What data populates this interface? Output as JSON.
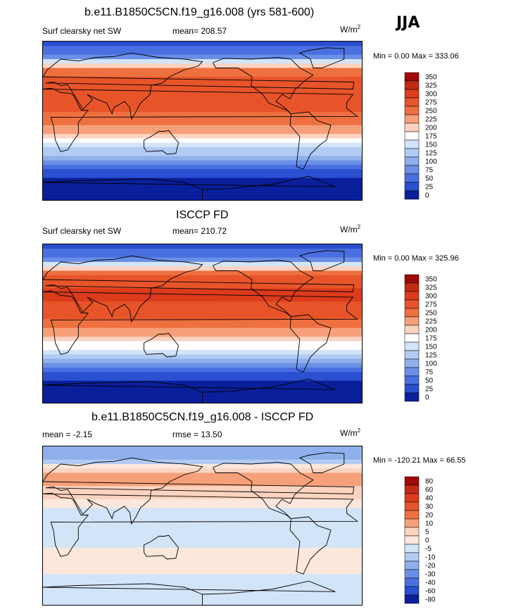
{
  "season": "JJA",
  "units_base": "W/m",
  "units_exp": "2",
  "panels": [
    {
      "title": "b.e11.B1850C5CN.f19_g16.008 (yrs 581-600)",
      "left_label": "Surf clearsky net SW",
      "center_label": "mean= 208.57",
      "stats": "Min =   0.00 Max = 333.06"
    },
    {
      "title": "ISCCP FD",
      "left_label": "Surf clearsky net SW",
      "center_label": "mean= 210.72",
      "stats": "Min =   0.00 Max = 325.96"
    },
    {
      "title": "b.e11.B1850C5CN.f19_g16.008 - ISCCP FD",
      "left_label": "mean =  -2.15",
      "center_label": "rmse =  13.50",
      "stats": "Min = -120.21 Max =  66.55"
    }
  ],
  "chart_data": [
    {
      "type": "heatmap",
      "title": "b.e11.B1850C5CN.f19_g16.008 (yrs 581-600)",
      "variable": "Surf clearsky net SW",
      "mean": 208.57,
      "min": 0.0,
      "max": 333.06,
      "colorbar_levels": [
        "350",
        "325",
        "300",
        "275",
        "250",
        "225",
        "200",
        "175",
        "150",
        "125",
        "100",
        "75",
        "50",
        "25",
        "0"
      ],
      "colorbar_colors": [
        "#a00a0a",
        "#c22a14",
        "#dc3b1c",
        "#e8542a",
        "#ee7040",
        "#f6a07a",
        "#fcd3c0",
        "#ffffff",
        "#d2e4f8",
        "#b2cbf2",
        "#8fb0ec",
        "#6a8fe6",
        "#4a6fe0",
        "#2a4fd0",
        "#0a1f9c"
      ],
      "lat_profile": [
        [
          90,
          40
        ],
        [
          75,
          60
        ],
        [
          60,
          250
        ],
        [
          45,
          290
        ],
        [
          30,
          300
        ],
        [
          15,
          285
        ],
        [
          0,
          260
        ],
        [
          -15,
          220
        ],
        [
          -30,
          160
        ],
        [
          -45,
          95
        ],
        [
          -60,
          30
        ],
        [
          -75,
          5
        ],
        [
          -90,
          0
        ]
      ]
    },
    {
      "type": "heatmap",
      "title": "ISCCP FD",
      "variable": "Surf clearsky net SW",
      "mean": 210.72,
      "min": 0.0,
      "max": 325.96,
      "colorbar_levels": [
        "350",
        "325",
        "300",
        "275",
        "250",
        "225",
        "200",
        "175",
        "150",
        "125",
        "100",
        "75",
        "50",
        "25",
        "0"
      ],
      "colorbar_colors": [
        "#a00a0a",
        "#c22a14",
        "#dc3b1c",
        "#e8542a",
        "#ee7040",
        "#f6a07a",
        "#fcd3c0",
        "#ffffff",
        "#d2e4f8",
        "#b2cbf2",
        "#8fb0ec",
        "#6a8fe6",
        "#4a6fe0",
        "#2a4fd0",
        "#0a1f9c"
      ],
      "lat_profile": [
        [
          90,
          45
        ],
        [
          75,
          65
        ],
        [
          60,
          255
        ],
        [
          45,
          295
        ],
        [
          30,
          305
        ],
        [
          15,
          290
        ],
        [
          0,
          265
        ],
        [
          -15,
          225
        ],
        [
          -30,
          165
        ],
        [
          -45,
          100
        ],
        [
          -60,
          30
        ],
        [
          -75,
          5
        ],
        [
          -90,
          0
        ]
      ]
    },
    {
      "type": "heatmap",
      "title": "b.e11.B1850C5CN.f19_g16.008 - ISCCP FD",
      "mean": -2.15,
      "rmse": 13.5,
      "min": -120.21,
      "max": 66.55,
      "colorbar_levels": [
        "80",
        "60",
        "40",
        "30",
        "20",
        "10",
        "5",
        "0",
        "-5",
        "-10",
        "-20",
        "-30",
        "-40",
        "-60",
        "-80"
      ],
      "colorbar_colors": [
        "#a00a0a",
        "#c22a14",
        "#dc3b1c",
        "#e8542a",
        "#ee7040",
        "#f6a07a",
        "#fcd3c0",
        "#fbe7dc",
        "#d2e4f8",
        "#b2cbf2",
        "#8fb0ec",
        "#6a8fe6",
        "#4a6fe0",
        "#2a4fd0",
        "#0a1f9c"
      ],
      "lat_profile": [
        [
          90,
          -20
        ],
        [
          75,
          -10
        ],
        [
          60,
          10
        ],
        [
          45,
          10
        ],
        [
          30,
          5
        ],
        [
          15,
          -5
        ],
        [
          0,
          -5
        ],
        [
          -15,
          -5
        ],
        [
          -30,
          3
        ],
        [
          -45,
          3
        ],
        [
          -60,
          -2
        ],
        [
          -75,
          -2
        ],
        [
          -90,
          0
        ]
      ]
    }
  ]
}
